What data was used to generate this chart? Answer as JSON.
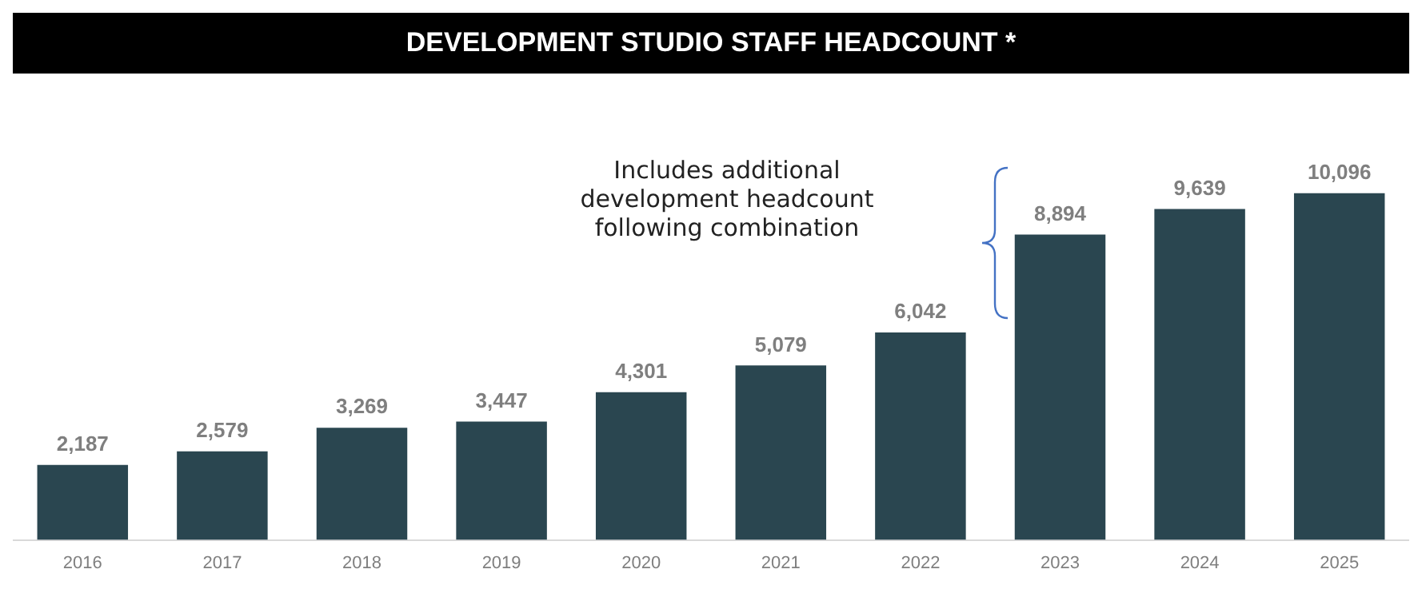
{
  "chart_data": {
    "type": "bar",
    "title": "DEVELOPMENT STUDIO STAFF HEADCOUNT *",
    "categories": [
      "2016",
      "2017",
      "2018",
      "2019",
      "2020",
      "2021",
      "2022",
      "2023",
      "2024",
      "2025"
    ],
    "values": [
      2187,
      2579,
      3269,
      3447,
      4301,
      5079,
      6042,
      8894,
      9639,
      10096
    ],
    "value_labels": [
      "2,187",
      "2,579",
      "3,269",
      "3,447",
      "4,301",
      "5,079",
      "6,042",
      "8,894",
      "9,639",
      "10,096"
    ],
    "color": "#2a4650",
    "grid": false,
    "legend": false,
    "annotations": [
      "Includes additional development headcount following combination"
    ]
  }
}
